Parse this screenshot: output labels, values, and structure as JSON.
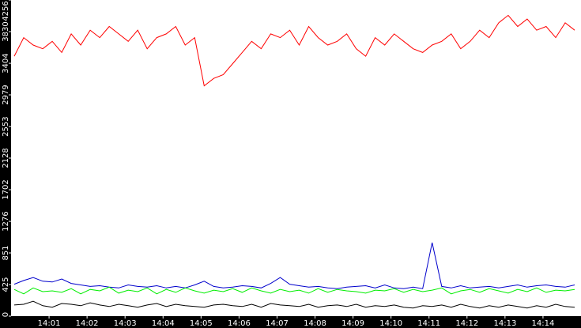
{
  "chart_data": {
    "type": "line",
    "title": "",
    "xlabel": "",
    "ylabel": "",
    "ylim": [
      0,
      4256
    ],
    "xlim_minutes": [
      14.0,
      14.83
    ],
    "grid": false,
    "background": "#ffffff",
    "axis_color": "#000000",
    "label_color": "#ffffff",
    "y_ticks": [
      0,
      425,
      851,
      1276,
      1702,
      2128,
      2553,
      2979,
      3404,
      3830,
      4256
    ],
    "x_ticks": [
      "14:01",
      "14:02",
      "14:03",
      "14:04",
      "14:05",
      "14:06",
      "14:07",
      "14:08",
      "14:09",
      "14:10",
      "14:11",
      "14:12",
      "14:13",
      "14:14"
    ],
    "series": [
      {
        "color": "#ff0000",
        "x": [
          "14:00:05",
          "14:00:20",
          "14:00:35",
          "14:00:50",
          "14:01:05",
          "14:01:20",
          "14:01:35",
          "14:01:50",
          "14:02:05",
          "14:02:20",
          "14:02:35",
          "14:02:50",
          "14:03:05",
          "14:03:20",
          "14:03:35",
          "14:03:50",
          "14:04:05",
          "14:04:20",
          "14:04:35",
          "14:04:50",
          "14:05:05",
          "14:05:20",
          "14:05:35",
          "14:05:50",
          "14:06:05",
          "14:06:20",
          "14:06:35",
          "14:06:50",
          "14:07:05",
          "14:07:20",
          "14:07:35",
          "14:07:50",
          "14:08:05",
          "14:08:20",
          "14:08:35",
          "14:08:50",
          "14:09:05",
          "14:09:20",
          "14:09:35",
          "14:09:50",
          "14:10:05",
          "14:10:20",
          "14:10:35",
          "14:10:50",
          "14:11:05",
          "14:11:20",
          "14:11:35",
          "14:11:50",
          "14:12:05",
          "14:12:20",
          "14:12:35",
          "14:12:50",
          "14:13:05",
          "14:13:20",
          "14:13:35",
          "14:13:50",
          "14:14:05",
          "14:14:20",
          "14:14:35",
          "14:14:50"
        ],
        "values": [
          3500,
          3750,
          3650,
          3600,
          3700,
          3550,
          3800,
          3650,
          3850,
          3750,
          3900,
          3800,
          3700,
          3850,
          3600,
          3750,
          3800,
          3900,
          3650,
          3750,
          3100,
          3200,
          3250,
          3400,
          3550,
          3700,
          3600,
          3800,
          3750,
          3850,
          3650,
          3900,
          3750,
          3650,
          3700,
          3800,
          3600,
          3500,
          3750,
          3650,
          3800,
          3700,
          3600,
          3550,
          3650,
          3700,
          3800,
          3600,
          3700,
          3850,
          3750,
          3950,
          4050,
          3900,
          4000,
          3850,
          3900,
          3750,
          3950,
          3850
        ]
      },
      {
        "color": "#0000cc",
        "x": [
          "14:00:05",
          "14:00:20",
          "14:00:35",
          "14:00:50",
          "14:01:05",
          "14:01:20",
          "14:01:35",
          "14:01:50",
          "14:02:05",
          "14:02:20",
          "14:02:35",
          "14:02:50",
          "14:03:05",
          "14:03:20",
          "14:03:35",
          "14:03:50",
          "14:04:05",
          "14:04:20",
          "14:04:35",
          "14:04:50",
          "14:05:05",
          "14:05:20",
          "14:05:35",
          "14:05:50",
          "14:06:05",
          "14:06:20",
          "14:06:35",
          "14:06:50",
          "14:07:05",
          "14:07:20",
          "14:07:35",
          "14:07:50",
          "14:08:05",
          "14:08:20",
          "14:08:35",
          "14:08:50",
          "14:09:05",
          "14:09:20",
          "14:09:35",
          "14:09:50",
          "14:10:05",
          "14:10:20",
          "14:10:35",
          "14:10:50",
          "14:11:05",
          "14:11:20",
          "14:11:35",
          "14:11:50",
          "14:12:05",
          "14:12:20",
          "14:12:35",
          "14:12:50",
          "14:13:05",
          "14:13:20",
          "14:13:35",
          "14:13:50",
          "14:14:05",
          "14:14:20",
          "14:14:35",
          "14:14:50"
        ],
        "values": [
          430,
          480,
          520,
          470,
          460,
          500,
          440,
          420,
          400,
          410,
          390,
          380,
          420,
          400,
          390,
          410,
          380,
          400,
          380,
          420,
          470,
          400,
          380,
          390,
          410,
          400,
          380,
          440,
          520,
          430,
          410,
          390,
          400,
          380,
          370,
          390,
          400,
          410,
          380,
          420,
          380,
          370,
          390,
          370,
          990,
          400,
          380,
          410,
          380,
          390,
          400,
          380,
          400,
          420,
          390,
          410,
          420,
          400,
          390,
          420
        ]
      },
      {
        "color": "#00ee00",
        "x": [
          "14:00:05",
          "14:00:20",
          "14:00:35",
          "14:00:50",
          "14:01:05",
          "14:01:20",
          "14:01:35",
          "14:01:50",
          "14:02:05",
          "14:02:20",
          "14:02:35",
          "14:02:50",
          "14:03:05",
          "14:03:20",
          "14:03:35",
          "14:03:50",
          "14:04:05",
          "14:04:20",
          "14:04:35",
          "14:04:50",
          "14:05:05",
          "14:05:20",
          "14:05:35",
          "14:05:50",
          "14:06:05",
          "14:06:20",
          "14:06:35",
          "14:06:50",
          "14:07:05",
          "14:07:20",
          "14:07:35",
          "14:07:50",
          "14:08:05",
          "14:08:20",
          "14:08:35",
          "14:08:50",
          "14:09:05",
          "14:09:20",
          "14:09:35",
          "14:09:50",
          "14:10:05",
          "14:10:20",
          "14:10:35",
          "14:10:50",
          "14:11:05",
          "14:11:20",
          "14:11:35",
          "14:11:50",
          "14:12:05",
          "14:12:20",
          "14:12:35",
          "14:12:50",
          "14:13:05",
          "14:13:20",
          "14:13:35",
          "14:13:50",
          "14:14:05",
          "14:14:20",
          "14:14:35",
          "14:14:50"
        ],
        "values": [
          360,
          300,
          380,
          330,
          340,
          320,
          370,
          300,
          360,
          340,
          390,
          310,
          350,
          330,
          380,
          300,
          360,
          320,
          380,
          340,
          310,
          350,
          330,
          370,
          320,
          380,
          340,
          310,
          360,
          330,
          350,
          310,
          370,
          320,
          360,
          340,
          330,
          310,
          350,
          340,
          370,
          320,
          360,
          330,
          350,
          380,
          300,
          340,
          360,
          320,
          370,
          340,
          310,
          360,
          330,
          380,
          320,
          350,
          340,
          360
        ]
      },
      {
        "color": "#000000",
        "x": [
          "14:00:05",
          "14:00:20",
          "14:00:35",
          "14:00:50",
          "14:01:05",
          "14:01:20",
          "14:01:35",
          "14:01:50",
          "14:02:05",
          "14:02:20",
          "14:02:35",
          "14:02:50",
          "14:03:05",
          "14:03:20",
          "14:03:35",
          "14:03:50",
          "14:04:05",
          "14:04:20",
          "14:04:35",
          "14:04:50",
          "14:05:05",
          "14:05:20",
          "14:05:35",
          "14:05:50",
          "14:06:05",
          "14:06:20",
          "14:06:35",
          "14:06:50",
          "14:07:05",
          "14:07:20",
          "14:07:35",
          "14:07:50",
          "14:08:05",
          "14:08:20",
          "14:08:35",
          "14:08:50",
          "14:09:05",
          "14:09:20",
          "14:09:35",
          "14:09:50",
          "14:10:05",
          "14:10:20",
          "14:10:35",
          "14:10:50",
          "14:11:05",
          "14:11:20",
          "14:11:35",
          "14:11:50",
          "14:12:05",
          "14:12:20",
          "14:12:35",
          "14:12:50",
          "14:13:05",
          "14:13:20",
          "14:13:35",
          "14:13:50",
          "14:14:05",
          "14:14:20",
          "14:14:35",
          "14:14:50"
        ],
        "values": [
          150,
          160,
          200,
          140,
          120,
          170,
          160,
          140,
          180,
          150,
          130,
          160,
          140,
          120,
          150,
          170,
          130,
          160,
          140,
          130,
          120,
          150,
          160,
          140,
          130,
          160,
          120,
          170,
          150,
          140,
          130,
          160,
          120,
          140,
          150,
          130,
          160,
          120,
          140,
          130,
          150,
          120,
          110,
          140,
          130,
          150,
          120,
          160,
          130,
          110,
          140,
          120,
          150,
          130,
          110,
          140,
          120,
          160,
          130,
          120
        ]
      }
    ]
  }
}
